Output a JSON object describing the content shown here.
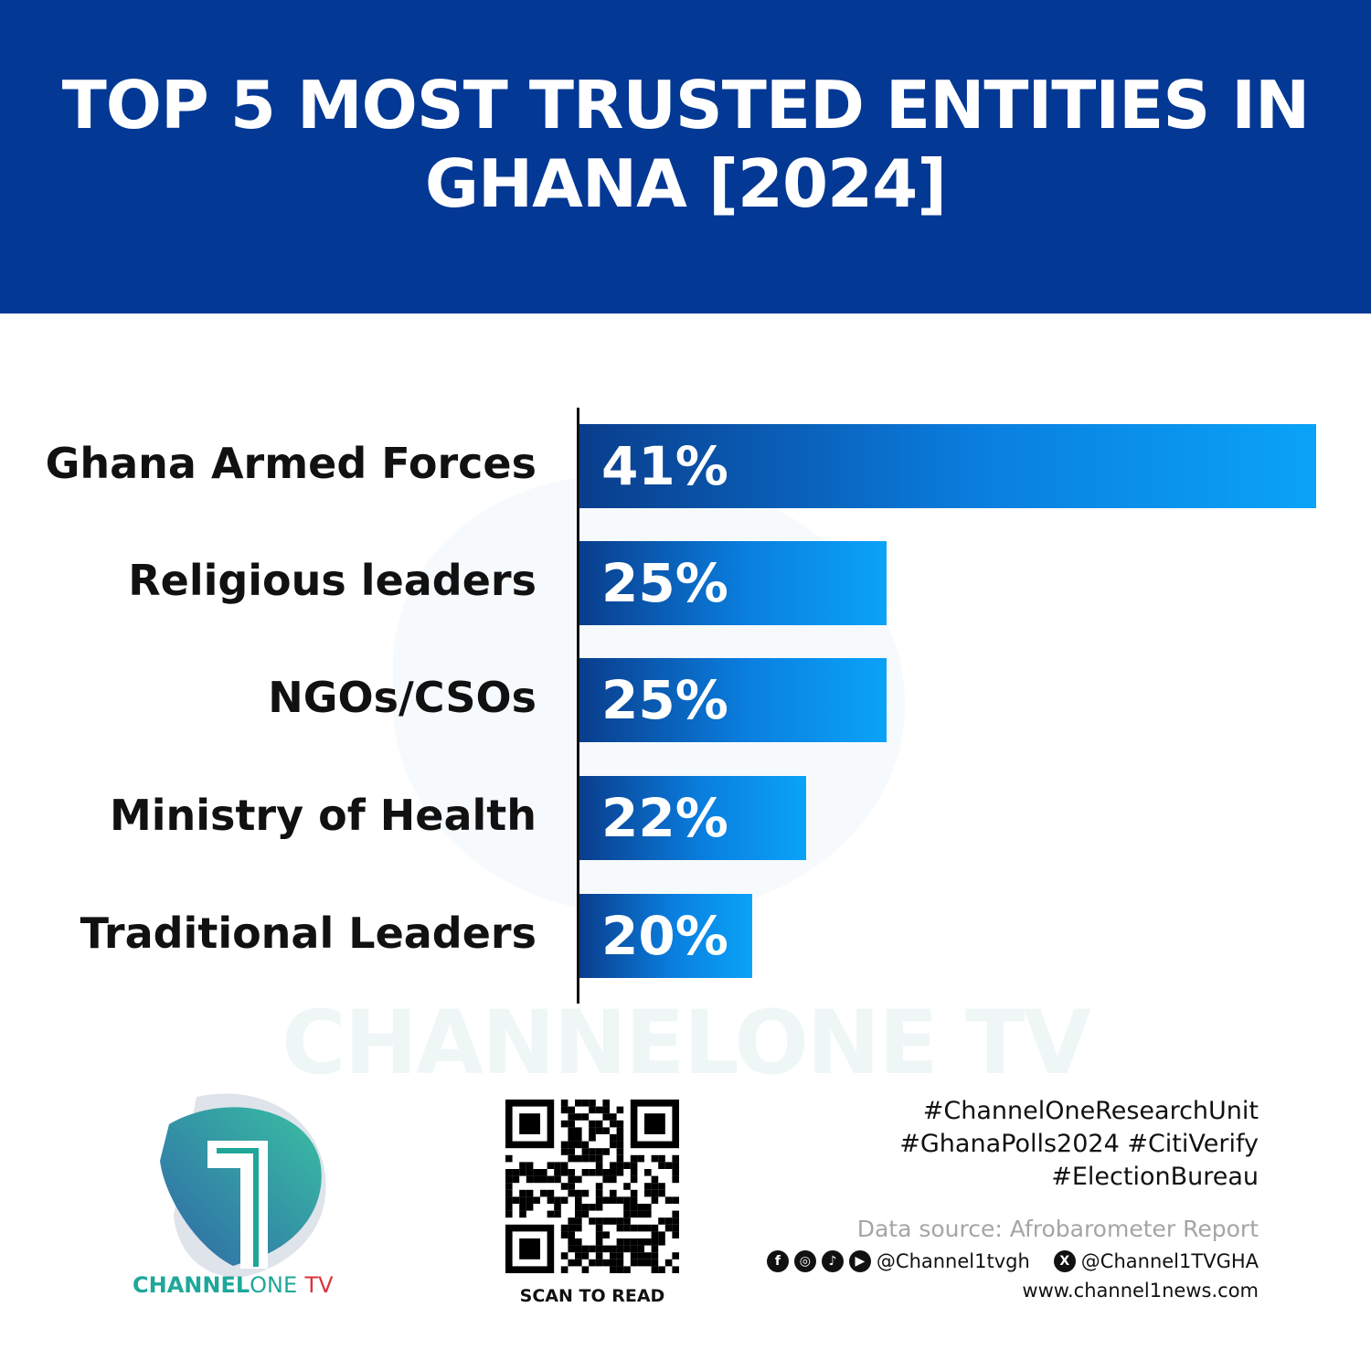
{
  "header": {
    "title": "TOP 5 MOST TRUSTED ENTITIES IN GHANA [2024]"
  },
  "chart_data": {
    "type": "bar",
    "orientation": "horizontal",
    "title": "TOP 5 MOST TRUSTED ENTITIES IN GHANA [2024]",
    "categories": [
      "Ghana Armed Forces",
      "Religious leaders",
      "NGOs/CSOs",
      "Ministry of Health",
      "Traditional Leaders"
    ],
    "values": [
      41,
      25,
      25,
      22,
      20
    ],
    "value_labels": [
      "41%",
      "25%",
      "25%",
      "22%",
      "20%"
    ],
    "unit": "%",
    "grid": false,
    "colors": {
      "bar_start": "#0a3d8c",
      "bar_end": "#0aa3f7",
      "header": "#033894"
    }
  },
  "watermark": "CHANNELONE TV",
  "logo": {
    "brand_bold": "CHANNEL",
    "brand_light": "ONE",
    "brand_tv": "TV"
  },
  "qr": {
    "caption": "SCAN TO READ"
  },
  "footer": {
    "tags": [
      "#ChannelOneResearchUnit",
      "#GhanaPolls2024 #CitiVerify",
      "#ElectionBureau"
    ],
    "source": "Data source: Afrobarometer Report",
    "social_handle": "@Channel1tvgh",
    "x_handle": "@Channel1TVGHA",
    "website": "www.channel1news.com",
    "icons": [
      "facebook-icon",
      "instagram-icon",
      "tiktok-icon",
      "youtube-icon",
      "x-icon"
    ]
  }
}
